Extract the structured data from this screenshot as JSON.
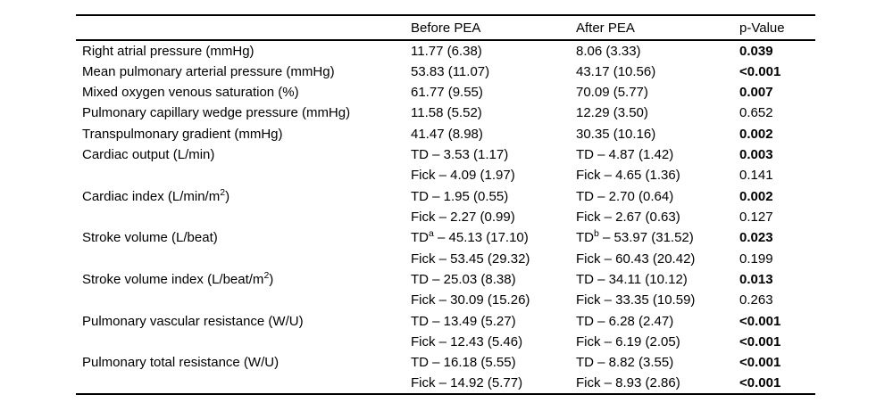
{
  "colors": {
    "background": "#ffffff",
    "text": "#000000",
    "rule": "#000000"
  },
  "table": {
    "headers": [
      "",
      "Before PEA",
      "After PEA",
      "p-Value"
    ],
    "rows": [
      {
        "label": [
          {
            "text": "Right atrial pressure (mmHg)"
          }
        ],
        "before": [
          {
            "text": "11.77 (6.38)"
          }
        ],
        "after": [
          {
            "text": "8.06 (3.33)"
          }
        ],
        "p": "0.039",
        "p_bold": true
      },
      {
        "label": [
          {
            "text": "Mean pulmonary arterial pressure (mmHg)"
          }
        ],
        "before": [
          {
            "text": "53.83 (11.07)"
          }
        ],
        "after": [
          {
            "text": "43.17 (10.56)"
          }
        ],
        "p": "<0.001",
        "p_bold": true
      },
      {
        "label": [
          {
            "text": "Mixed oxygen venous saturation (%)"
          }
        ],
        "before": [
          {
            "text": "61.77 (9.55)"
          }
        ],
        "after": [
          {
            "text": "70.09 (5.77)"
          }
        ],
        "p": "0.007",
        "p_bold": true
      },
      {
        "label": [
          {
            "text": "Pulmonary capillary wedge pressure (mmHg)"
          }
        ],
        "before": [
          {
            "text": "11.58 (5.52)"
          }
        ],
        "after": [
          {
            "text": "12.29 (3.50)"
          }
        ],
        "p": "0.652",
        "p_bold": false
      },
      {
        "label": [
          {
            "text": "Transpulmonary gradient (mmHg)"
          }
        ],
        "before": [
          {
            "text": "41.47 (8.98)"
          }
        ],
        "after": [
          {
            "text": "30.35 (10.16)"
          }
        ],
        "p": "0.002",
        "p_bold": true
      },
      {
        "label": [
          {
            "text": "Cardiac output (L/min)"
          }
        ],
        "before": [
          {
            "text": "TD – 3.53 (1.17)"
          }
        ],
        "after": [
          {
            "text": "TD – 4.87 (1.42)"
          }
        ],
        "p": "0.003",
        "p_bold": true
      },
      {
        "label": [],
        "before": [
          {
            "text": "Fick – 4.09 (1.97)"
          }
        ],
        "after": [
          {
            "text": "Fick – 4.65 (1.36)"
          }
        ],
        "p": "0.141",
        "p_bold": false
      },
      {
        "label": [
          {
            "text": "Cardiac index (L/min/m"
          },
          {
            "text": "2",
            "sup": true
          },
          {
            "text": ")"
          }
        ],
        "before": [
          {
            "text": "TD – 1.95 (0.55)"
          }
        ],
        "after": [
          {
            "text": "TD – 2.70 (0.64)"
          }
        ],
        "p": "0.002",
        "p_bold": true
      },
      {
        "label": [],
        "before": [
          {
            "text": "Fick – 2.27 (0.99)"
          }
        ],
        "after": [
          {
            "text": "Fick – 2.67 (0.63)"
          }
        ],
        "p": "0.127",
        "p_bold": false
      },
      {
        "label": [
          {
            "text": "Stroke volume (L/beat)"
          }
        ],
        "before": [
          {
            "text": "TD"
          },
          {
            "text": "a",
            "sup": true
          },
          {
            "text": " – 45.13 (17.10)"
          }
        ],
        "after": [
          {
            "text": "TD"
          },
          {
            "text": "b",
            "sup": true
          },
          {
            "text": " – 53.97 (31.52)"
          }
        ],
        "p": "0.023",
        "p_bold": true
      },
      {
        "label": [],
        "before": [
          {
            "text": "Fick – 53.45 (29.32)"
          }
        ],
        "after": [
          {
            "text": "Fick – 60.43 (20.42)"
          }
        ],
        "p": "0.199",
        "p_bold": false
      },
      {
        "label": [
          {
            "text": "Stroke volume index (L/beat/m"
          },
          {
            "text": "2",
            "sup": true
          },
          {
            "text": ")"
          }
        ],
        "before": [
          {
            "text": "TD – 25.03 (8.38)"
          }
        ],
        "after": [
          {
            "text": "TD – 34.11 (10.12)"
          }
        ],
        "p": "0.013",
        "p_bold": true
      },
      {
        "label": [],
        "before": [
          {
            "text": "Fick – 30.09 (15.26)"
          }
        ],
        "after": [
          {
            "text": "Fick – 33.35 (10.59)"
          }
        ],
        "p": "0.263",
        "p_bold": false
      },
      {
        "label": [
          {
            "text": "Pulmonary vascular resistance (W/U)"
          }
        ],
        "before": [
          {
            "text": "TD – 13.49 (5.27)"
          }
        ],
        "after": [
          {
            "text": "TD – 6.28 (2.47)"
          }
        ],
        "p": "<0.001",
        "p_bold": true
      },
      {
        "label": [],
        "before": [
          {
            "text": "Fick – 12.43 (5.46)"
          }
        ],
        "after": [
          {
            "text": "Fick – 6.19 (2.05)"
          }
        ],
        "p": "<0.001",
        "p_bold": true
      },
      {
        "label": [
          {
            "text": "Pulmonary total resistance (W/U)"
          }
        ],
        "before": [
          {
            "text": "TD – 16.18 (5.55)"
          }
        ],
        "after": [
          {
            "text": "TD – 8.82 (3.55)"
          }
        ],
        "p": "<0.001",
        "p_bold": true
      },
      {
        "label": [],
        "before": [
          {
            "text": "Fick – 14.92 (5.77)"
          }
        ],
        "after": [
          {
            "text": "Fick – 8.93 (2.86)"
          }
        ],
        "p": "<0.001",
        "p_bold": true
      }
    ]
  }
}
